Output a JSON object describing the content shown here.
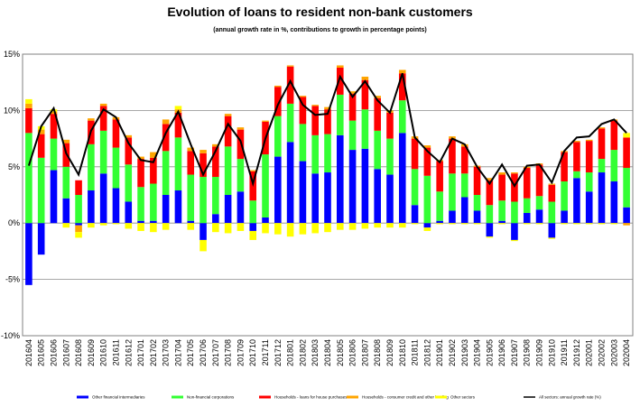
{
  "chart_data": {
    "type": "bar",
    "title": "Evolution of loans to resident non-bank customers",
    "subtitle": "(annual growth rate in %, contributions to growth in percentage points)",
    "categories": [
      "201604",
      "201605",
      "201606",
      "201607",
      "201608",
      "201609",
      "201610",
      "201611",
      "201612",
      "201701",
      "201702",
      "201703",
      "201704",
      "201705",
      "201706",
      "201707",
      "201708",
      "201709",
      "201710",
      "201711",
      "201712",
      "201801",
      "201802",
      "201803",
      "201804",
      "201805",
      "201806",
      "201807",
      "201808",
      "201809",
      "201810",
      "201811",
      "201812",
      "201901",
      "201902",
      "201903",
      "201904",
      "201905",
      "201906",
      "201907",
      "201908",
      "201909",
      "201910",
      "201911",
      "201912",
      "202001",
      "202002",
      "202003",
      "202004"
    ],
    "ylim": [
      -10,
      15
    ],
    "yticks": [
      -10,
      -5,
      0,
      5,
      10,
      15
    ],
    "ytick_labels": [
      "-10%",
      "-5%",
      "0%",
      "5%",
      "10%",
      "15%"
    ],
    "grid": true,
    "stacked": true,
    "series": [
      {
        "name": "Other financial intermediaries",
        "color": "#0000ff",
        "values": [
          -5.5,
          -2.8,
          4.7,
          2.2,
          -0.2,
          2.9,
          4.4,
          3.1,
          1.9,
          0.2,
          0.2,
          2.5,
          2.9,
          0.2,
          -1.5,
          0.8,
          2.5,
          2.8,
          -0.7,
          0.5,
          5.9,
          7.2,
          5.5,
          4.4,
          4.5,
          7.8,
          6.5,
          6.6,
          4.8,
          4.3,
          8.0,
          1.6,
          -0.4,
          0.2,
          1.1,
          2.3,
          1.1,
          -1.2,
          0.2,
          -1.5,
          0.9,
          1.2,
          -1.3,
          1.1,
          4.0,
          2.8,
          4.5,
          3.7,
          1.4
        ]
      },
      {
        "name": "Non-financial corporations",
        "color": "#33ff33",
        "values": [
          8.0,
          5.8,
          2.8,
          2.8,
          2.5,
          4.1,
          3.8,
          3.6,
          3.3,
          3.0,
          3.3,
          3.9,
          4.7,
          4.1,
          4.1,
          3.3,
          4.3,
          2.9,
          2.0,
          5.6,
          3.6,
          3.4,
          3.3,
          3.4,
          3.4,
          3.6,
          2.6,
          3.5,
          3.4,
          3.2,
          2.9,
          3.2,
          4.2,
          2.6,
          3.3,
          2.1,
          1.4,
          1.6,
          1.8,
          1.9,
          1.3,
          1.2,
          1.9,
          2.6,
          0.6,
          1.7,
          1.2,
          2.8,
          3.5
        ]
      },
      {
        "name": "Households - loans for house purchases",
        "color": "#ff0000",
        "values": [
          2.2,
          2.1,
          2.2,
          2.1,
          1.3,
          2.1,
          2.2,
          2.5,
          2.4,
          2.5,
          2.3,
          2.4,
          2.2,
          2.1,
          2.1,
          2.7,
          2.7,
          2.6,
          2.6,
          2.9,
          2.6,
          3.3,
          2.4,
          2.6,
          2.2,
          2.4,
          2.4,
          2.6,
          2.9,
          2.3,
          2.4,
          2.7,
          2.5,
          2.7,
          3.1,
          2.4,
          2.5,
          2.2,
          2.3,
          2.5,
          2.7,
          2.8,
          1.5,
          2.6,
          2.6,
          2.8,
          2.7,
          2.6,
          2.7
        ]
      },
      {
        "name": "Households - consumer credit and other lending",
        "color": "#ffa500",
        "values": [
          0.4,
          0.4,
          0.2,
          0.3,
          -0.6,
          0.2,
          0.2,
          0.2,
          0.2,
          0.2,
          0.5,
          0.4,
          0.3,
          0.3,
          0.3,
          0.2,
          0.2,
          0.2,
          0.1,
          0.1,
          0.1,
          0.1,
          0.1,
          0.1,
          0.2,
          0.2,
          0.2,
          0.3,
          0.2,
          0.2,
          0.3,
          0.2,
          0.2,
          0.1,
          0.2,
          0.2,
          0.1,
          0.2,
          0.2,
          0.1,
          0.1,
          0.1,
          0.1,
          0.1,
          0.1,
          0.1,
          0.1,
          0.1,
          -0.2
        ]
      },
      {
        "name": "Other sectors",
        "color": "#ffff00",
        "values": [
          0.4,
          0.3,
          0.2,
          -0.4,
          -0.5,
          -0.4,
          -0.2,
          -0.1,
          -0.5,
          -0.7,
          -0.8,
          -0.6,
          0.3,
          -0.6,
          -1.0,
          -0.8,
          -0.9,
          -0.7,
          -0.8,
          -0.9,
          -1.0,
          -1.2,
          -1.0,
          -0.9,
          -0.8,
          -0.6,
          -0.6,
          -0.5,
          -0.4,
          -0.4,
          -0.4,
          -0.1,
          -0.3,
          -0.1,
          -0.1,
          -0.1,
          -0.1,
          -0.1,
          -0.1,
          -0.1,
          -0.1,
          -0.1,
          -0.1,
          -0.1,
          -0.1,
          -0.1,
          -0.1,
          -0.1,
          0.4
        ]
      },
      {
        "name": "All sectors: annual growth rate (%)",
        "color": "#000000",
        "type": "line",
        "values": [
          5.1,
          8.6,
          10.2,
          6.2,
          4.3,
          8.2,
          10.1,
          9.4,
          7.1,
          5.6,
          5.4,
          8.0,
          9.9,
          7.0,
          4.3,
          6.4,
          8.8,
          7.3,
          3.5,
          7.5,
          10.5,
          12.6,
          10.5,
          9.6,
          9.7,
          13.0,
          11.2,
          12.6,
          10.9,
          9.8,
          13.3,
          7.6,
          6.4,
          5.4,
          7.5,
          7.0,
          5.0,
          3.5,
          5.2,
          3.3,
          5.1,
          5.2,
          3.6,
          6.4,
          7.6,
          7.7,
          8.8,
          9.2,
          8.0
        ]
      }
    ],
    "legend_placement": "bottom"
  }
}
